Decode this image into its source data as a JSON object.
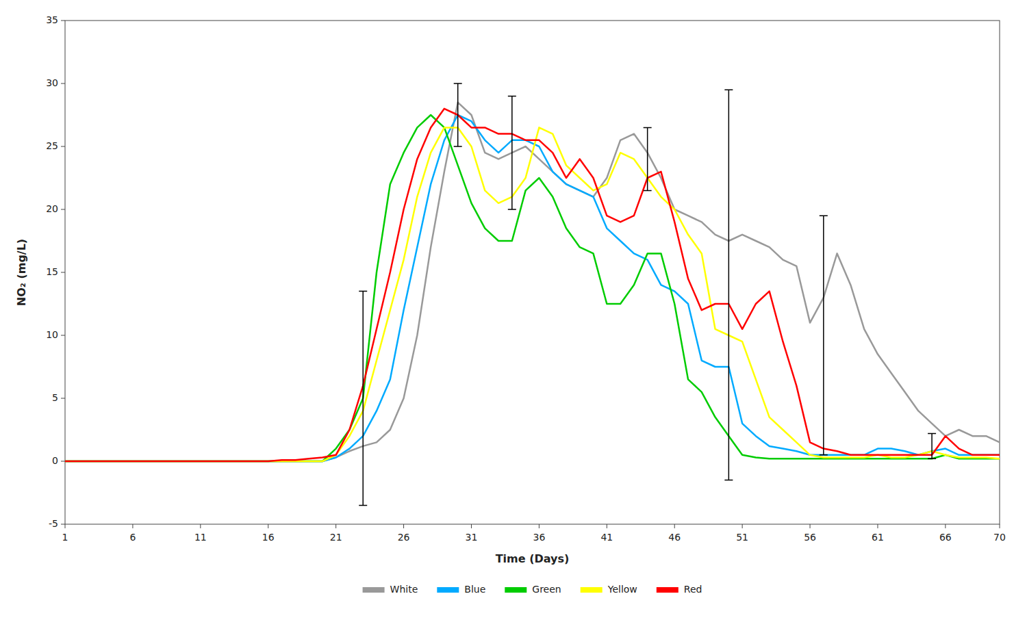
{
  "chart_data": {
    "type": "line",
    "xlabel": "Time (Days)",
    "ylabel": "NO₂ (mg/L)",
    "x": [
      1,
      2,
      3,
      4,
      5,
      6,
      7,
      8,
      9,
      10,
      11,
      12,
      13,
      14,
      15,
      16,
      17,
      18,
      19,
      20,
      21,
      22,
      23,
      24,
      25,
      26,
      27,
      28,
      29,
      30,
      31,
      32,
      33,
      34,
      35,
      36,
      37,
      38,
      39,
      40,
      41,
      42,
      43,
      44,
      45,
      46,
      47,
      48,
      49,
      50,
      51,
      52,
      53,
      54,
      55,
      56,
      57,
      58,
      59,
      60,
      61,
      62,
      63,
      64,
      65,
      66,
      67,
      68,
      69,
      70
    ],
    "series": [
      {
        "name": "White",
        "color": "#999999",
        "values": [
          0,
          0,
          0,
          0,
          0,
          0,
          0,
          0,
          0,
          0,
          0,
          0,
          0,
          0,
          0,
          0,
          0,
          0,
          0,
          0,
          0.3,
          0.8,
          1.2,
          1.5,
          2.5,
          5.0,
          10.0,
          17.0,
          23.0,
          28.5,
          27.5,
          24.5,
          24.0,
          24.5,
          25.0,
          24.0,
          23.0,
          22.0,
          21.5,
          21.0,
          22.5,
          25.5,
          26.0,
          24.5,
          22.5,
          20.0,
          19.5,
          19.0,
          18.0,
          17.5,
          18.0,
          17.5,
          17.0,
          16.0,
          15.5,
          11.0,
          13.0,
          16.5,
          14.0,
          10.5,
          8.5,
          7.0,
          5.5,
          4.0,
          3.0,
          2.0,
          2.5,
          2.0,
          2.0,
          1.5
        ]
      },
      {
        "name": "Blue",
        "color": "#00AAFF",
        "values": [
          0,
          0,
          0,
          0,
          0,
          0,
          0,
          0,
          0,
          0,
          0,
          0,
          0,
          0,
          0,
          0,
          0,
          0,
          0,
          0,
          0.3,
          1.0,
          2.0,
          4.0,
          6.5,
          12.0,
          17.0,
          22.0,
          25.5,
          27.5,
          27.0,
          25.5,
          24.5,
          25.5,
          25.5,
          25.0,
          23.0,
          22.0,
          21.5,
          21.0,
          18.5,
          17.5,
          16.5,
          16.0,
          14.0,
          13.5,
          12.5,
          8.0,
          7.5,
          7.5,
          3.0,
          2.0,
          1.2,
          1.0,
          0.8,
          0.5,
          0.5,
          0.5,
          0.5,
          0.5,
          1.0,
          1.0,
          0.8,
          0.5,
          0.8,
          1.0,
          0.5,
          0.5,
          0.5,
          0.5
        ]
      },
      {
        "name": "Green",
        "color": "#00CC00",
        "values": [
          0,
          0,
          0,
          0,
          0,
          0,
          0,
          0,
          0,
          0,
          0,
          0,
          0,
          0,
          0,
          0,
          0,
          0,
          0,
          0,
          1.0,
          2.5,
          5.0,
          15.0,
          22.0,
          24.5,
          26.5,
          27.5,
          26.5,
          23.5,
          20.5,
          18.5,
          17.5,
          17.5,
          21.5,
          22.5,
          21.0,
          18.5,
          17.0,
          16.5,
          12.5,
          12.5,
          14.0,
          16.5,
          16.5,
          12.5,
          6.5,
          5.5,
          3.5,
          2.0,
          0.5,
          0.3,
          0.2,
          0.2,
          0.2,
          0.2,
          0.2,
          0.2,
          0.2,
          0.2,
          0.2,
          0.2,
          0.2,
          0.2,
          0.2,
          0.5,
          0.2,
          0.2,
          0.2,
          0.2
        ]
      },
      {
        "name": "Yellow",
        "color": "#FFFF00",
        "values": [
          0,
          0,
          0,
          0,
          0,
          0,
          0,
          0,
          0,
          0,
          0,
          0,
          0,
          0,
          0,
          0,
          0,
          0,
          0,
          0,
          0.5,
          2.0,
          4.0,
          8.0,
          12.0,
          16.0,
          21.0,
          24.5,
          26.5,
          26.5,
          25.0,
          21.5,
          20.5,
          21.0,
          22.5,
          26.5,
          26.0,
          23.5,
          22.5,
          21.5,
          22.0,
          24.5,
          24.0,
          22.5,
          21.0,
          20.0,
          18.0,
          16.5,
          10.5,
          10.0,
          9.5,
          6.5,
          3.5,
          2.5,
          1.5,
          0.5,
          0.3,
          0.3,
          0.3,
          0.3,
          0.5,
          0.3,
          0.3,
          0.5,
          0.8,
          0.5,
          0.3,
          0.3,
          0.3,
          0.2
        ]
      },
      {
        "name": "Red",
        "color": "#FF0000",
        "values": [
          0,
          0,
          0,
          0,
          0,
          0,
          0,
          0,
          0,
          0,
          0,
          0,
          0,
          0,
          0,
          0,
          0.1,
          0.1,
          0.2,
          0.3,
          0.5,
          2.5,
          6.0,
          10.5,
          15.0,
          20.0,
          24.0,
          26.5,
          28.0,
          27.5,
          26.5,
          26.5,
          26.0,
          26.0,
          25.5,
          25.5,
          24.5,
          22.5,
          24.0,
          22.5,
          19.5,
          19.0,
          19.5,
          22.5,
          23.0,
          19.0,
          14.5,
          12.0,
          12.5,
          12.5,
          10.5,
          12.5,
          13.5,
          9.5,
          6.0,
          1.5,
          1.0,
          0.8,
          0.5,
          0.5,
          0.5,
          0.5,
          0.5,
          0.5,
          0.5,
          2.0,
          1.0,
          0.5,
          0.5,
          0.5
        ]
      }
    ],
    "error_bars": {
      "x": [
        23,
        30,
        34,
        44,
        50,
        57,
        65
      ],
      "values": [
        5.0,
        27.5,
        24.5,
        24.0,
        14.0,
        10.0,
        1.2
      ],
      "errors": [
        8.5,
        2.5,
        4.5,
        2.5,
        15.5,
        9.5,
        1.0
      ]
    },
    "xlim": [
      1,
      70
    ],
    "xticks": [
      1,
      6,
      11,
      16,
      21,
      26,
      31,
      36,
      41,
      46,
      51,
      56,
      61,
      66,
      70
    ],
    "ylim": [
      -5,
      35
    ],
    "yticks": [
      -5,
      0,
      5,
      10,
      15,
      20,
      25,
      30,
      35
    ],
    "grid": false,
    "legend": "bottom"
  }
}
